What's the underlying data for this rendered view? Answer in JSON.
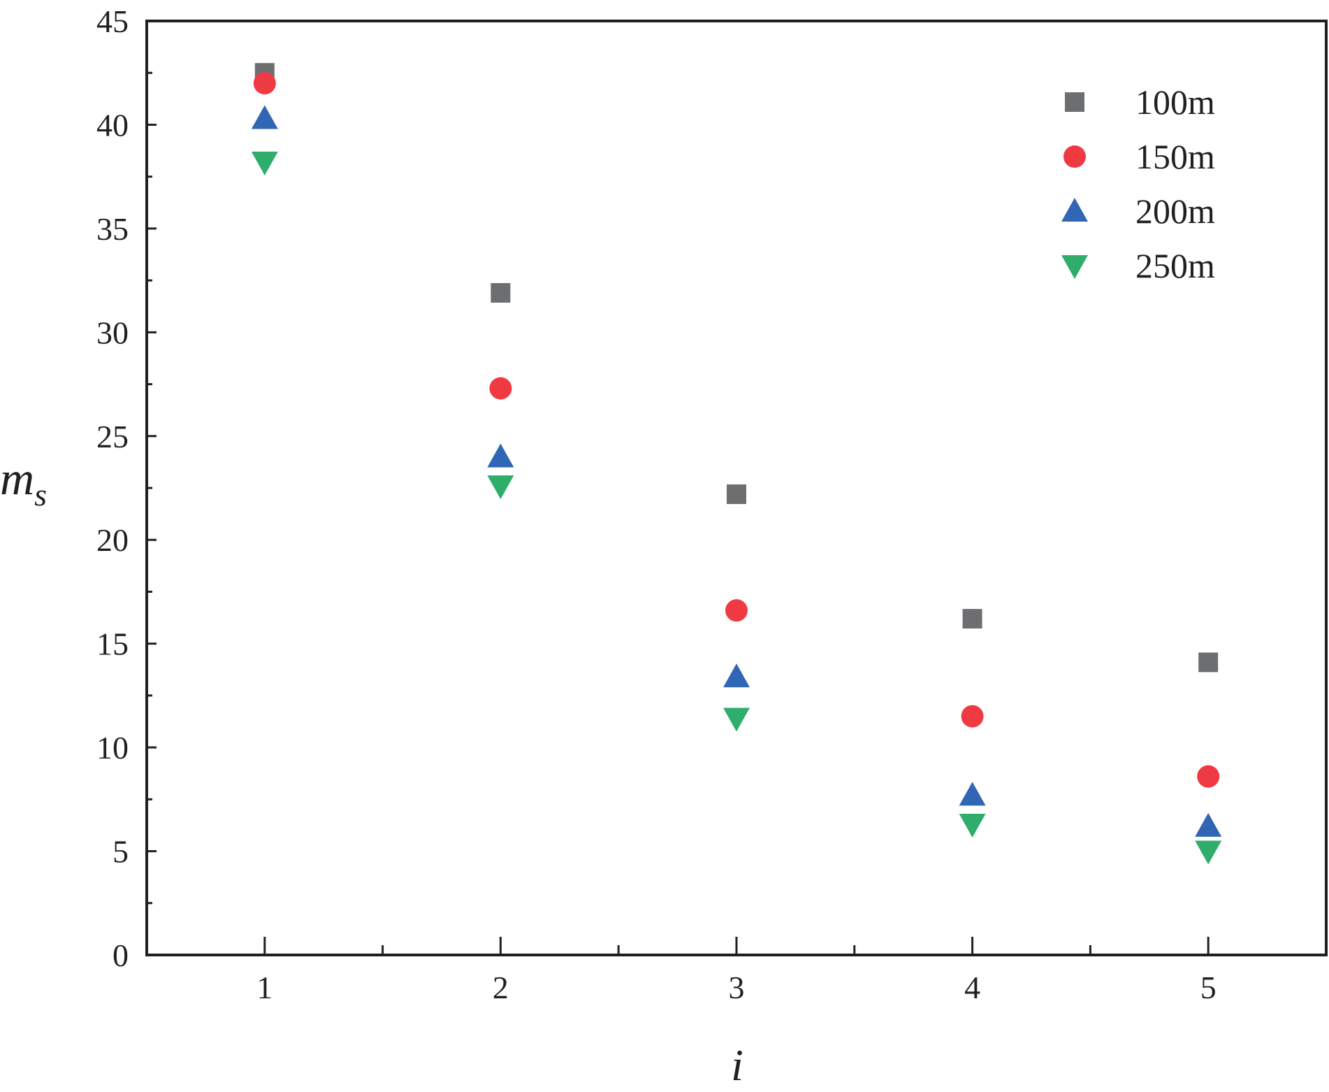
{
  "chart_data": {
    "type": "scatter",
    "title": "",
    "xlabel": "i",
    "ylabel": {
      "main": "m",
      "sub": "s"
    },
    "x": [
      1,
      2,
      3,
      4,
      5
    ],
    "x_ticks": [
      1,
      2,
      3,
      4,
      5
    ],
    "x_minor_ticks": [
      1.5,
      2.5,
      3.5,
      4.5
    ],
    "xlim": [
      0.5,
      5.5
    ],
    "y_ticks": [
      0,
      5,
      10,
      15,
      20,
      25,
      30,
      35,
      40,
      45
    ],
    "y_minor_ticks": [
      2.5,
      7.5,
      12.5,
      17.5,
      22.5,
      27.5,
      32.5,
      37.5,
      42.5
    ],
    "ylim": [
      0,
      45
    ],
    "grid": false,
    "legend_position": "top-right",
    "series": [
      {
        "name": "100m",
        "marker": "square",
        "color": "#6d6e70",
        "values": [
          42.5,
          31.9,
          22.2,
          16.2,
          14.1
        ]
      },
      {
        "name": "150m",
        "marker": "circle",
        "color": "#ef3a43",
        "values": [
          42.0,
          27.3,
          16.6,
          11.5,
          8.6
        ]
      },
      {
        "name": "200m",
        "marker": "triangle-up",
        "color": "#3166b5",
        "values": [
          40.3,
          24.0,
          13.4,
          7.7,
          6.2
        ]
      },
      {
        "name": "250m",
        "marker": "triangle-down",
        "color": "#2fad6b",
        "values": [
          38.2,
          22.6,
          11.4,
          6.3,
          5.0
        ]
      }
    ]
  }
}
